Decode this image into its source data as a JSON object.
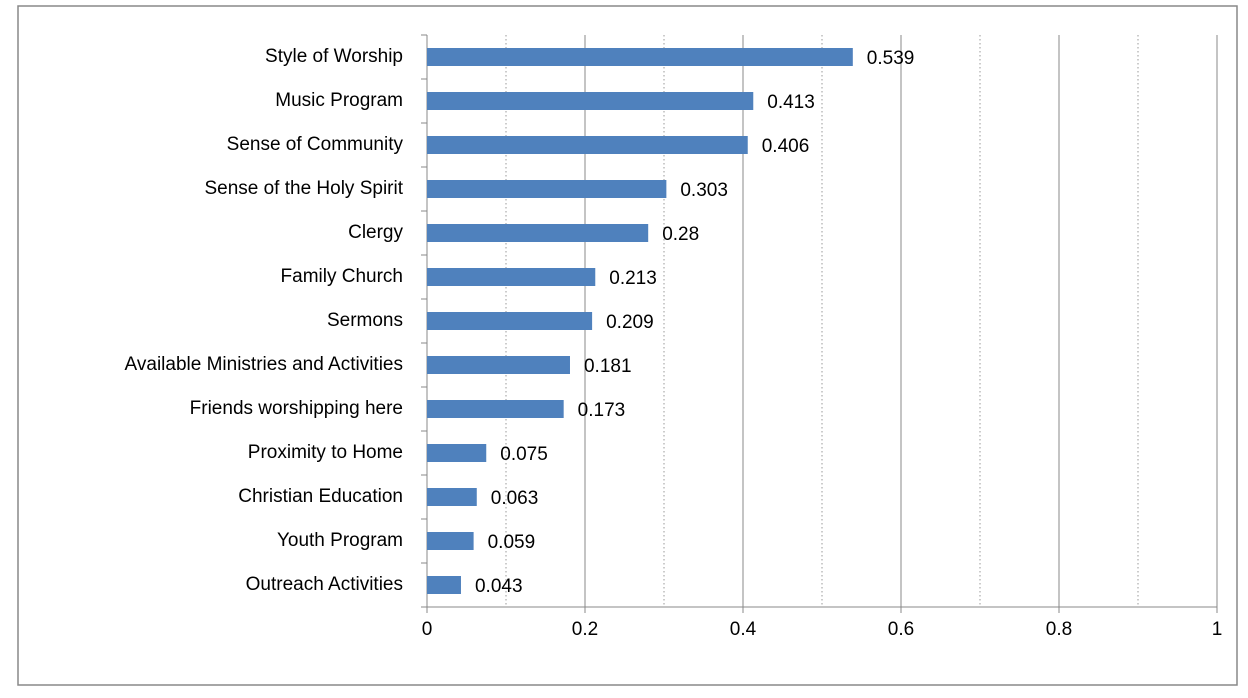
{
  "chart_data": {
    "type": "bar",
    "orientation": "horizontal",
    "categories": [
      "Style of Worship",
      "Music Program",
      "Sense of Community",
      "Sense of the Holy Spirit",
      "Clergy",
      "Family Church",
      "Sermons",
      "Available Ministries and Activities",
      "Friends worshipping here",
      "Proximity to Home",
      "Christian Education",
      "Youth Program",
      "Outreach Activities"
    ],
    "values": [
      0.539,
      0.413,
      0.406,
      0.303,
      0.28,
      0.213,
      0.209,
      0.181,
      0.173,
      0.075,
      0.063,
      0.059,
      0.043
    ],
    "color": "#4f81bd",
    "xlim": [
      0,
      1
    ],
    "xticks": [
      0,
      0.2,
      0.4,
      0.6,
      0.8,
      1
    ],
    "grid": true,
    "minor_grid": true
  }
}
